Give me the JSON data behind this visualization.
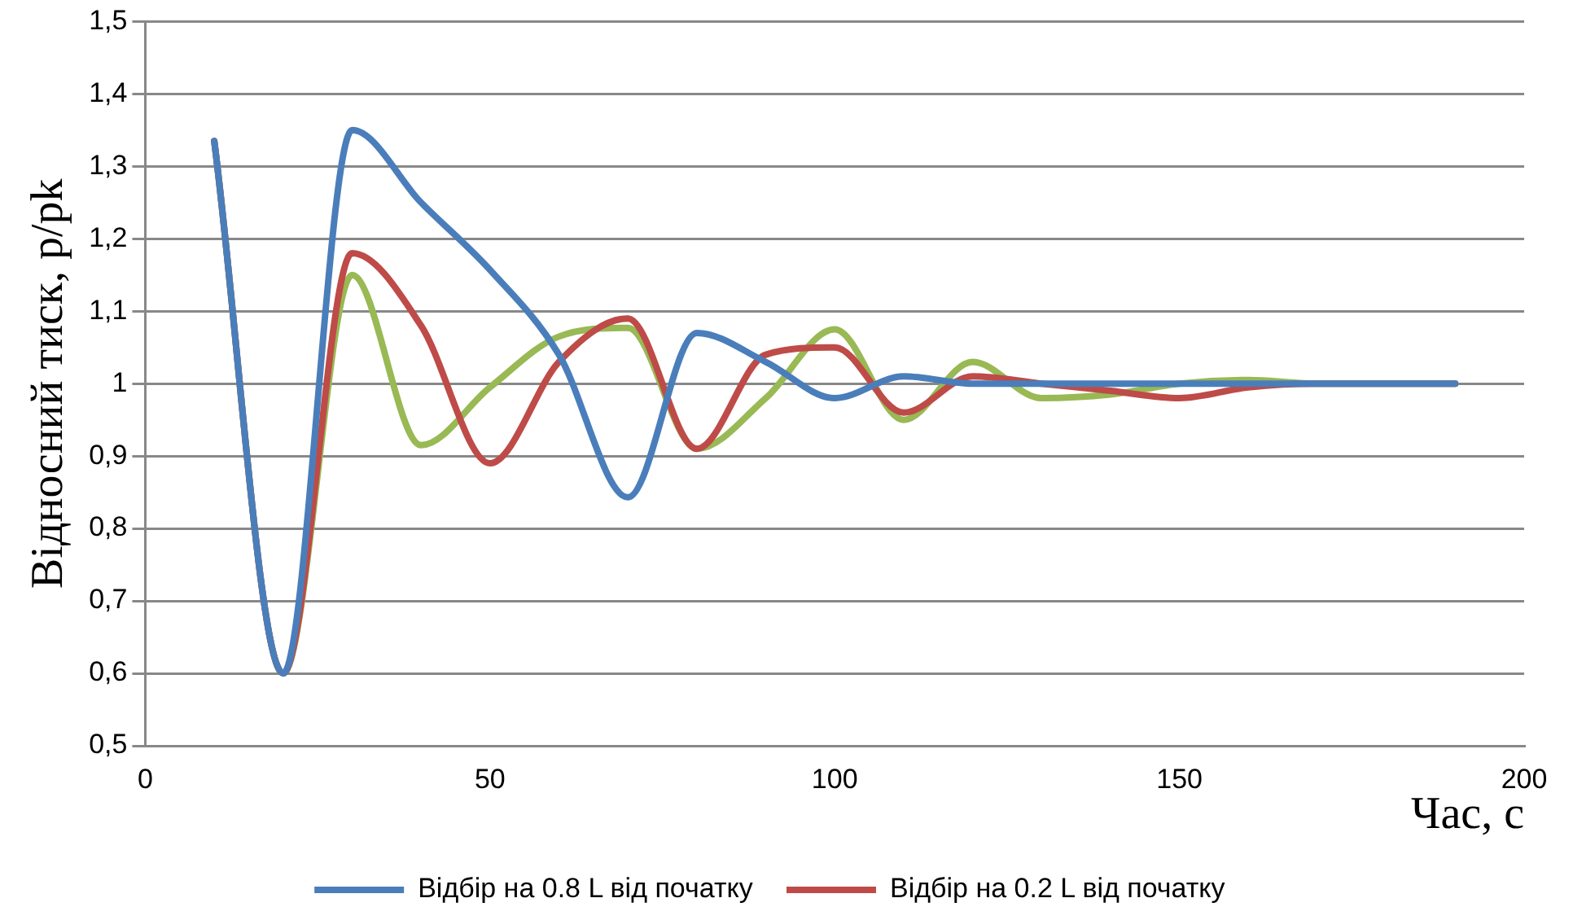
{
  "chart_data": {
    "type": "line",
    "xlabel": "Час, с",
    "ylabel": "Відносний тиск, p/pk",
    "x": [
      10,
      20,
      30,
      40,
      50,
      60,
      70,
      80,
      90,
      100,
      110,
      120,
      130,
      140,
      150,
      160,
      170,
      180,
      190
    ],
    "series": [
      {
        "name": "Відбір на 0.8 L від початку",
        "color": "#4a7ebb",
        "values": [
          1.335,
          0.6,
          1.35,
          1.25,
          1.157,
          1.04,
          0.843,
          1.07,
          1.03,
          0.98,
          1.01,
          1.0,
          1.0,
          1.0,
          1.0,
          1.0,
          1.0,
          1.0,
          1.0
        ]
      },
      {
        "name": "Відбір на 0.2 L від початку",
        "color": "#be4b48",
        "values": [
          1.335,
          0.6,
          1.18,
          1.08,
          0.89,
          1.03,
          1.09,
          0.91,
          1.04,
          1.05,
          0.96,
          1.01,
          1.0,
          0.99,
          0.98,
          0.995,
          1.0,
          1.0,
          1.0
        ]
      },
      {
        "color": "#98b954",
        "values": [
          1.335,
          0.6,
          1.15,
          0.915,
          0.995,
          1.065,
          1.077,
          0.91,
          0.98,
          1.075,
          0.95,
          1.03,
          0.98,
          0.985,
          1.0,
          1.005,
          1.0,
          1.0,
          1.0
        ]
      }
    ],
    "xlim": [
      0,
      200
    ],
    "xticks": [
      0,
      50,
      100,
      150,
      200
    ],
    "ylim": [
      0.5,
      1.5
    ],
    "yticks": [
      {
        "value": 0.5,
        "label": "0,5"
      },
      {
        "value": 0.6,
        "label": "0,6"
      },
      {
        "value": 0.7,
        "label": "0,7"
      },
      {
        "value": 0.8,
        "label": "0,8"
      },
      {
        "value": 0.9,
        "label": "0,9"
      },
      {
        "value": 1,
        "label": "1"
      },
      {
        "value": 1.1,
        "label": "1,1"
      },
      {
        "value": 1.2,
        "label": "1,2"
      },
      {
        "value": 1.3,
        "label": "1,3"
      },
      {
        "value": 1.4,
        "label": "1,4"
      },
      {
        "value": 1.5,
        "label": "1,5"
      }
    ],
    "grid": "y",
    "legend": "bottom",
    "marker": "none",
    "line_style": "solid"
  }
}
